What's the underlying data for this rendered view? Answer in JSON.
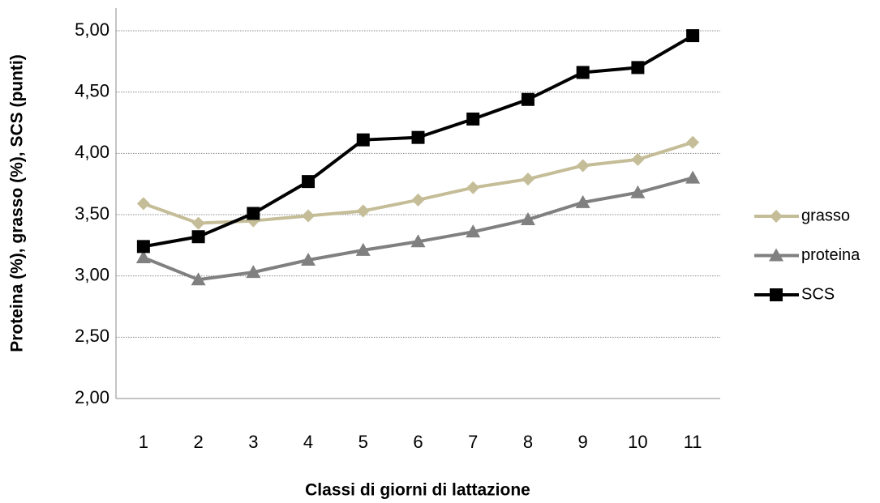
{
  "chart_data": {
    "type": "line",
    "x_label": "Classi di giorni di lattazione",
    "y_label": "Proteina (%), grasso (%), SCS (punti)",
    "categories": [
      "1",
      "2",
      "3",
      "4",
      "5",
      "6",
      "7",
      "8",
      "9",
      "10",
      "11"
    ],
    "series": [
      {
        "name": "grasso",
        "color": "#c4bd97",
        "marker": "diamond",
        "values": [
          3.59,
          3.43,
          3.45,
          3.49,
          3.53,
          3.62,
          3.72,
          3.79,
          3.9,
          3.95,
          4.09
        ]
      },
      {
        "name": "proteina",
        "color": "#808080",
        "marker": "triangle",
        "values": [
          3.15,
          2.97,
          3.03,
          3.13,
          3.21,
          3.28,
          3.36,
          3.46,
          3.6,
          3.68,
          3.8
        ]
      },
      {
        "name": "SCS",
        "color": "#000000",
        "marker": "square",
        "values": [
          3.24,
          3.32,
          3.51,
          3.77,
          4.11,
          4.13,
          4.28,
          4.44,
          4.66,
          4.7,
          4.96
        ]
      }
    ],
    "ylim": [
      2,
      5
    ],
    "yticks": [
      {
        "value": 2,
        "label": "2,00"
      },
      {
        "value": 2.5,
        "label": "2,50"
      },
      {
        "value": 3,
        "label": "3,00"
      },
      {
        "value": 3.5,
        "label": "3,50"
      },
      {
        "value": 4,
        "label": "4,00"
      },
      {
        "value": 4.5,
        "label": "4,50"
      },
      {
        "value": 5,
        "label": "5,00"
      }
    ],
    "grid": true,
    "legend": "right"
  }
}
